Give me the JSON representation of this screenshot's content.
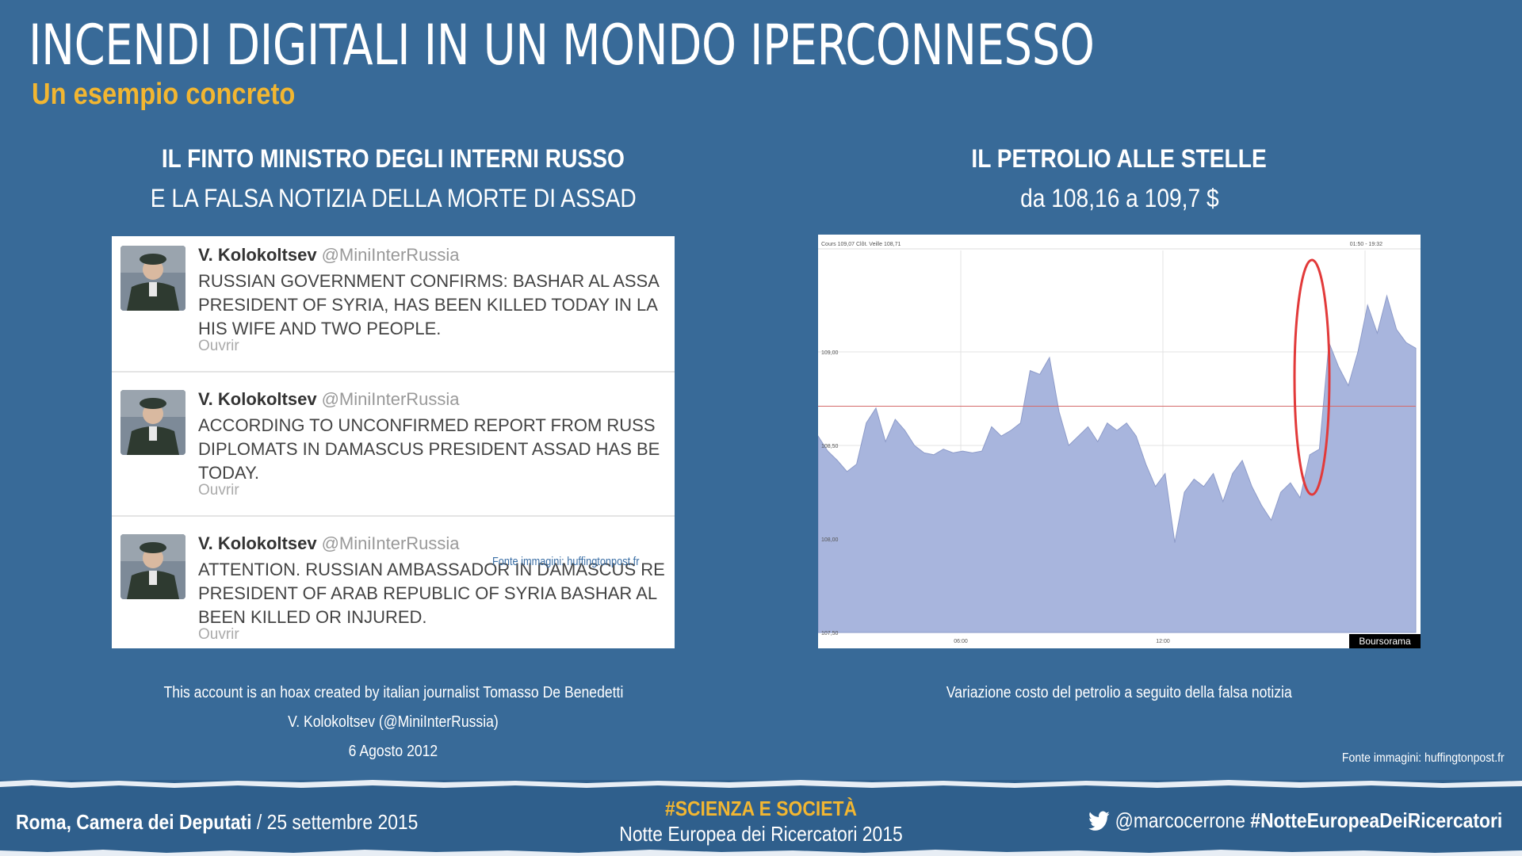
{
  "slide": {
    "title": "INCENDI DIGITALI IN UN MONDO IPERCONNESSO",
    "subtitle": "Un esempio concreto"
  },
  "left": {
    "heading_bold": "IL FINTO MINISTRO DEGLI INTERNI RUSSO",
    "heading": "E LA FALSA NOTIZIA DELLA MORTE DI ASSAD",
    "tweets": [
      {
        "name": "V. Kolokoltsev",
        "handle": "@MiniInterRussia",
        "text": "RUSSIAN GOVERNMENT CONFIRMS: BASHAR AL ASSA\nPRESIDENT OF SYRIA, HAS BEEN KILLED TODAY IN LA\nHIS WIFE AND TWO PEOPLE.",
        "action": "Ouvrir"
      },
      {
        "name": "V. Kolokoltsev",
        "handle": "@MiniInterRussia",
        "text": "ACCORDING TO UNCONFIRMED REPORT FROM RUSS\nDIPLOMATS IN DAMASCUS PRESIDENT ASSAD HAS BE\nTODAY.",
        "action": "Ouvrir"
      },
      {
        "name": "V. Kolokoltsev",
        "handle": "@MiniInterRussia",
        "text": "ATTENTION. RUSSIAN AMBASSADOR IN DAMASCUS RE\nPRESIDENT OF ARAB REPUBLIC OF SYRIA BASHAR AL\nBEEN KILLED OR INJURED.",
        "action": "Ouvrir"
      }
    ],
    "image_credit": "Fonte immagini: huffingtonpost.fr",
    "caption_lines": [
      "This account is an hoax created by italian journalist Tomasso De Benedetti",
      "V. Kolokoltsev (@MiniInterRussia)",
      "6 Agosto 2012"
    ]
  },
  "right": {
    "heading_bold": "IL PETROLIO ALLE STELLE",
    "heading": "da 108,16 a 109,7 $",
    "caption": "Variazione costo del petrolio a seguito della falsa notizia",
    "image_credit": "Fonte immagini: huffingtonpost.fr"
  },
  "chart_data": {
    "type": "area",
    "header_left": "Cours 109,07   Clôt. Veille 108,71",
    "header_right": "01:50 - 19:32",
    "brand": "Boursorama",
    "ylim": [
      107.5,
      109.5
    ],
    "y_ticks": [
      "109,00",
      "108,50",
      "108,00",
      "107,50"
    ],
    "x_ticks": [
      "06:00",
      "12:00"
    ],
    "reference_line": 108.71,
    "series_color": "#a8b5dd",
    "highlight_color": "#e23a3a",
    "x": [
      0,
      10,
      20,
      30,
      40,
      50,
      60,
      70,
      80,
      90,
      100,
      110,
      120,
      130,
      140,
      150,
      160,
      170,
      180,
      190,
      200,
      210,
      220,
      230,
      240,
      250,
      260,
      270,
      280,
      290,
      300,
      310,
      320,
      330,
      340,
      350,
      360,
      370,
      380,
      390,
      400,
      410,
      420,
      430,
      440,
      450,
      460,
      470,
      480,
      490,
      500,
      510,
      520,
      530,
      540,
      550,
      560,
      570,
      580,
      590,
      600,
      610,
      620
    ],
    "values": [
      108.55,
      108.47,
      108.42,
      108.36,
      108.4,
      108.62,
      108.7,
      108.52,
      108.64,
      108.58,
      108.5,
      108.46,
      108.45,
      108.48,
      108.46,
      108.47,
      108.46,
      108.47,
      108.6,
      108.55,
      108.58,
      108.62,
      108.9,
      108.88,
      108.97,
      108.68,
      108.5,
      108.55,
      108.6,
      108.52,
      108.62,
      108.58,
      108.62,
      108.55,
      108.4,
      108.28,
      108.35,
      107.98,
      108.25,
      108.32,
      108.28,
      108.35,
      108.2,
      108.35,
      108.42,
      108.28,
      108.18,
      108.1,
      108.25,
      108.3,
      108.22,
      108.45,
      108.48,
      109.05,
      108.92,
      108.82,
      109.0,
      109.25,
      109.1,
      109.3,
      109.12,
      109.05,
      109.02
    ]
  },
  "footer": {
    "venue": "Roma, Camera dei Deputati",
    "date": " / 25 settembre 2015",
    "tag": "#SCIENZA E SOCIETÀ",
    "event": "Notte Europea dei Ricercatori 2015",
    "twitter_handle": "@marcocerrone",
    "hashtag": "#NotteEuropeaDeiRicercatori"
  }
}
